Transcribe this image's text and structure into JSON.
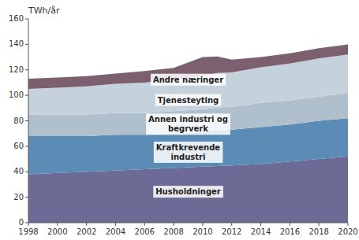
{
  "chart_data": {
    "type": "area",
    "stacked": true,
    "ylabel": "TWh/år",
    "x": [
      1998,
      2000,
      2002,
      2004,
      2006,
      2008,
      2010,
      2011,
      2012,
      2014,
      2016,
      2018,
      2020
    ],
    "series": [
      {
        "color": "#6b6b96",
        "values": [
          38,
          39,
          40,
          41,
          42,
          43,
          44,
          44.5,
          45,
          46,
          48,
          50,
          52
        ]
      },
      {
        "color": "#5b8cb5",
        "values": [
          30,
          29,
          28,
          28,
          27,
          27,
          27,
          28,
          28,
          29,
          29,
          30,
          30
        ]
      },
      {
        "color": "#b0bfcc",
        "values": [
          17,
          17,
          17,
          17,
          17,
          17.5,
          18,
          18,
          18,
          19,
          19,
          19,
          20
        ]
      },
      {
        "color": "#c5d2dc",
        "values": [
          20,
          21,
          22,
          23,
          24,
          25,
          26,
          27,
          27,
          28,
          29,
          30,
          30
        ]
      },
      {
        "color": "#7d6070",
        "values": [
          8,
          8,
          8,
          8,
          9,
          9,
          15,
          13,
          10,
          8,
          8,
          8,
          8
        ]
      }
    ],
    "xlim": [
      1998,
      2020
    ],
    "xticks": [
      1998,
      2000,
      2002,
      2004,
      2006,
      2008,
      2010,
      2012,
      2014,
      2016,
      2018,
      2020
    ],
    "ylim": [
      0,
      160
    ],
    "yticks": [
      0,
      20,
      40,
      60,
      80,
      100,
      120,
      140,
      160
    ],
    "annotations": [
      {
        "text": "Husholdninger",
        "x": 2009,
        "y": 24
      },
      {
        "text": "Kraftkrevende\nindustri",
        "x": 2009,
        "y": 55
      },
      {
        "text": "Annen industri og\nbegrverk",
        "x": 2009,
        "y": 77
      },
      {
        "text": "Tjenesteyting",
        "x": 2009,
        "y": 96
      },
      {
        "text": "Andre næringer",
        "x": 2009,
        "y": 112
      }
    ]
  }
}
